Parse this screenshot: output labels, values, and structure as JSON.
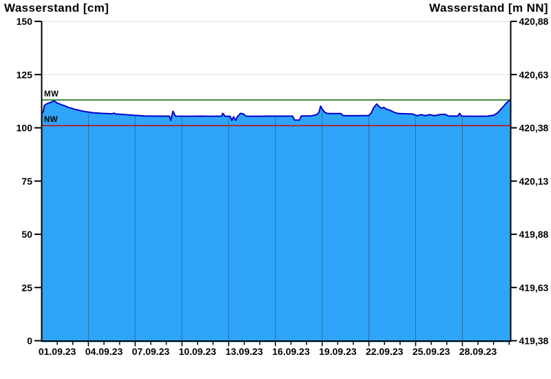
{
  "titles": {
    "left_axis_title": "Wasserstand [cm]",
    "right_axis_title": "Wasserstand [m NN]"
  },
  "chart_data": {
    "type": "area",
    "series_name": "Wasserstand",
    "unit": "cm",
    "x": {
      "labels": [
        "01.09.23",
        "04.09.23",
        "07.09.23",
        "10.09.23",
        "13.09.23",
        "16.09.23",
        "19.09.23",
        "22.09.23",
        "25.09.23",
        "28.09.23"
      ],
      "label_day_positions": [
        1,
        4,
        7,
        10,
        13,
        16,
        19,
        22,
        25,
        28
      ],
      "gridline_day_positions": [
        3,
        6,
        9,
        12,
        15,
        18,
        21,
        24,
        27
      ],
      "minor_tick_interval_days": 1,
      "axis_range_days": [
        0,
        30.1
      ]
    },
    "y_left": {
      "title": "Wasserstand [cm]",
      "tick_labels": [
        "150",
        "125",
        "100",
        "75",
        "50",
        "25",
        "0"
      ],
      "tick_values": [
        150,
        125,
        100,
        75,
        50,
        25,
        0
      ],
      "gridline_values": [
        25,
        50,
        75,
        100,
        125,
        150
      ],
      "range": [
        0,
        150
      ]
    },
    "y_right": {
      "title": "Wasserstand [m NN]",
      "tick_labels": [
        "420,88",
        "420,63",
        "420,38",
        "420,13",
        "419,88",
        "419,63",
        "419,38"
      ],
      "tick_values": [
        420.88,
        420.63,
        420.38,
        420.13,
        419.88,
        419.63,
        419.38
      ],
      "range": [
        419.38,
        420.88
      ]
    },
    "reference_lines": [
      {
        "label": "MW",
        "value_cm": 113.1,
        "color": "#006600"
      },
      {
        "label": "NW",
        "value_cm": 101.0,
        "color": "#d40000"
      }
    ],
    "points_day_cm": [
      [
        0,
        107.2
      ],
      [
        0.1,
        107.4
      ],
      [
        0.16,
        110.3
      ],
      [
        0.3,
        111.2
      ],
      [
        0.55,
        111.9
      ],
      [
        0.8,
        112.6
      ],
      [
        0.9,
        112.2
      ],
      [
        1.0,
        111.6
      ],
      [
        1.1,
        111.4
      ],
      [
        1.25,
        110.9
      ],
      [
        1.5,
        110.3
      ],
      [
        1.7,
        109.6
      ],
      [
        1.9,
        109.2
      ],
      [
        2.1,
        108.7
      ],
      [
        2.3,
        108.4
      ],
      [
        2.6,
        107.9
      ],
      [
        2.9,
        107.5
      ],
      [
        3.3,
        107.1
      ],
      [
        3.9,
        106.8
      ],
      [
        4.5,
        106.6
      ],
      [
        4.62,
        106.9
      ],
      [
        4.78,
        106.5
      ],
      [
        5.3,
        106.2
      ],
      [
        5.9,
        105.9
      ],
      [
        6.6,
        105.6
      ],
      [
        7.5,
        105.5
      ],
      [
        8.2,
        105.5
      ],
      [
        8.28,
        103.5
      ],
      [
        8.43,
        107.8
      ],
      [
        8.58,
        105.5
      ],
      [
        9.3,
        105.4
      ],
      [
        10.2,
        105.5
      ],
      [
        11.0,
        105.4
      ],
      [
        11.55,
        105.5
      ],
      [
        11.62,
        106.8
      ],
      [
        11.78,
        105.4
      ],
      [
        12.1,
        105.4
      ],
      [
        12.2,
        103.5
      ],
      [
        12.32,
        105.2
      ],
      [
        12.44,
        103.5
      ],
      [
        12.56,
        105.2
      ],
      [
        12.75,
        106.8
      ],
      [
        12.95,
        106.5
      ],
      [
        13.1,
        105.5
      ],
      [
        13.5,
        105.4
      ],
      [
        14.5,
        105.5
      ],
      [
        15.5,
        105.5
      ],
      [
        16.1,
        105.5
      ],
      [
        16.22,
        103.7
      ],
      [
        16.55,
        103.6
      ],
      [
        16.66,
        105.6
      ],
      [
        17.3,
        105.6
      ],
      [
        17.65,
        106.2
      ],
      [
        17.8,
        107.3
      ],
      [
        17.9,
        110.2
      ],
      [
        18.0,
        108.9
      ],
      [
        18.15,
        107.4
      ],
      [
        18.35,
        106.7
      ],
      [
        19.2,
        106.7
      ],
      [
        19.35,
        105.7
      ],
      [
        20.3,
        105.7
      ],
      [
        21.0,
        105.8
      ],
      [
        21.15,
        107.0
      ],
      [
        21.3,
        109.4
      ],
      [
        21.5,
        111.2
      ],
      [
        21.65,
        110.0
      ],
      [
        21.8,
        109.2
      ],
      [
        21.95,
        109.6
      ],
      [
        22.15,
        108.7
      ],
      [
        22.4,
        108.1
      ],
      [
        22.65,
        107.2
      ],
      [
        22.9,
        106.7
      ],
      [
        23.4,
        106.6
      ],
      [
        23.8,
        106.5
      ],
      [
        24.1,
        105.7
      ],
      [
        24.35,
        106.2
      ],
      [
        24.6,
        105.7
      ],
      [
        24.9,
        106.2
      ],
      [
        25.2,
        105.7
      ],
      [
        25.6,
        106.3
      ],
      [
        25.9,
        106.3
      ],
      [
        26.1,
        105.6
      ],
      [
        26.7,
        105.5
      ],
      [
        26.82,
        106.8
      ],
      [
        26.95,
        105.5
      ],
      [
        27.8,
        105.4
      ],
      [
        28.6,
        105.5
      ],
      [
        29.0,
        105.9
      ],
      [
        29.25,
        107.0
      ],
      [
        29.45,
        108.6
      ],
      [
        29.65,
        110.2
      ],
      [
        29.8,
        111.5
      ],
      [
        29.95,
        112.5
      ],
      [
        30.1,
        113.2
      ]
    ],
    "colors": {
      "area_fill": "#2EA5F8",
      "area_border": "#0000CC",
      "grid_light": "#DADADA",
      "grid_on_area": "#2473A8",
      "axis": "#000000",
      "mw_line": "#006600",
      "nw_line": "#d40000"
    },
    "legend_position": "none",
    "grid": "on"
  }
}
